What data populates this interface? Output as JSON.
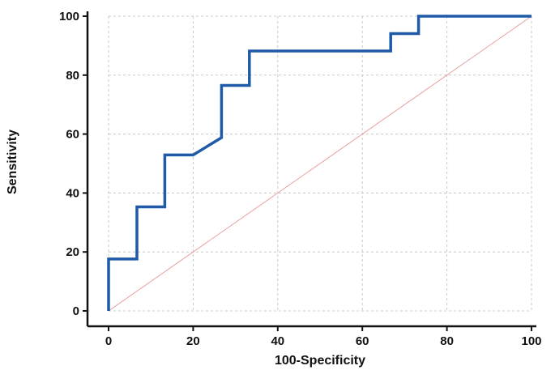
{
  "chart_data": {
    "type": "line",
    "title": "",
    "xlabel": "100-Specificity",
    "ylabel": "Sensitivity",
    "xlim": [
      0,
      100
    ],
    "ylim": [
      0,
      100
    ],
    "x_ticks": [
      0,
      20,
      40,
      60,
      80,
      100
    ],
    "y_ticks": [
      0,
      20,
      40,
      60,
      80,
      100
    ],
    "grid": "dashed vertical and horizontal",
    "legend": "none",
    "series": [
      {
        "style": "step",
        "color": "#1f5aa8",
        "points": [
          [
            0,
            0
          ],
          [
            0,
            17.6
          ],
          [
            6.7,
            17.6
          ],
          [
            6.7,
            35.3
          ],
          [
            13.3,
            35.3
          ],
          [
            13.3,
            52.9
          ],
          [
            20,
            52.9
          ],
          [
            26.7,
            58.8
          ],
          [
            26.7,
            76.5
          ],
          [
            33.3,
            76.5
          ],
          [
            33.3,
            88.2
          ],
          [
            66.7,
            88.2
          ],
          [
            66.7,
            94.1
          ],
          [
            73.3,
            94.1
          ],
          [
            73.3,
            100
          ],
          [
            100,
            100
          ]
        ]
      },
      {
        "style": "diagonal reference",
        "color": "#e8a0a0",
        "points": [
          [
            0,
            0
          ],
          [
            100,
            100
          ]
        ]
      }
    ]
  }
}
